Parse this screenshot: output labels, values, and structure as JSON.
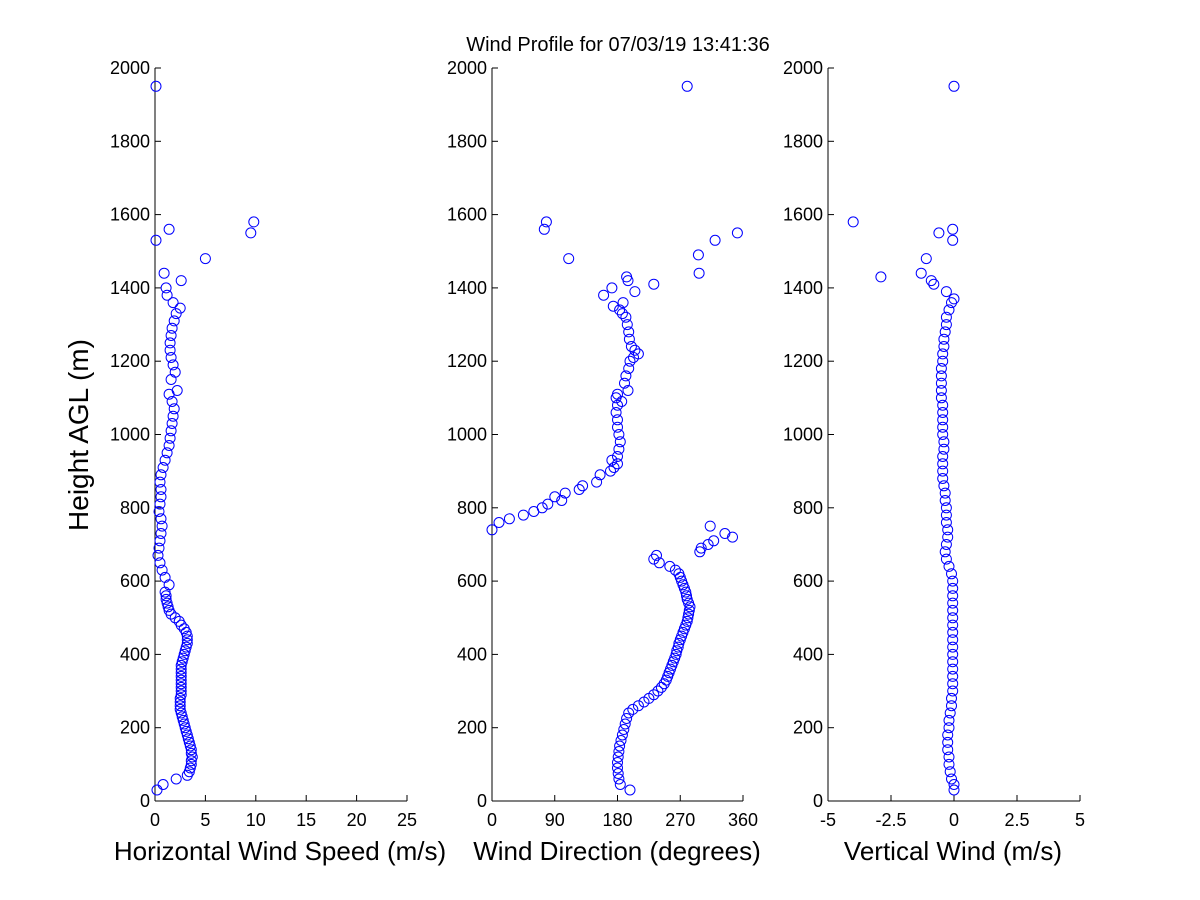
{
  "figure": {
    "title": "Wind Profile for  07/03/19 13:41:36"
  },
  "chart_data": [
    {
      "type": "scatter",
      "id": "speed",
      "title": "",
      "xlabel": "Horizontal Wind Speed (m/s)",
      "ylabel": "Height AGL (m)",
      "xlim": [
        0,
        25
      ],
      "ylim": [
        0,
        2000
      ],
      "xticks": [
        0,
        5,
        10,
        15,
        20,
        25
      ],
      "xtick_labels": [
        "0",
        "5",
        "10",
        "15",
        "20",
        "25"
      ],
      "yticks": [
        0,
        200,
        400,
        600,
        800,
        1000,
        1200,
        1400,
        1600,
        1800,
        2000
      ],
      "ytick_labels": [
        "0",
        "200",
        "400",
        "600",
        "800",
        "1000",
        "1200",
        "1400",
        "1600",
        "1800",
        "2000"
      ],
      "marker": "open-circle",
      "marker_color": "#0000ff",
      "grid": false,
      "points": [
        [
          0.2,
          30
        ],
        [
          0.8,
          45
        ],
        [
          2.1,
          60
        ],
        [
          3.2,
          70
        ],
        [
          3.4,
          80
        ],
        [
          3.5,
          90
        ],
        [
          3.6,
          100
        ],
        [
          3.6,
          110
        ],
        [
          3.7,
          120
        ],
        [
          3.6,
          130
        ],
        [
          3.6,
          140
        ],
        [
          3.5,
          150
        ],
        [
          3.4,
          160
        ],
        [
          3.3,
          170
        ],
        [
          3.2,
          180
        ],
        [
          3.1,
          190
        ],
        [
          3.0,
          200
        ],
        [
          2.9,
          210
        ],
        [
          2.8,
          220
        ],
        [
          2.7,
          230
        ],
        [
          2.6,
          240
        ],
        [
          2.5,
          250
        ],
        [
          2.5,
          260
        ],
        [
          2.5,
          270
        ],
        [
          2.5,
          280
        ],
        [
          2.6,
          290
        ],
        [
          2.6,
          300
        ],
        [
          2.6,
          310
        ],
        [
          2.6,
          320
        ],
        [
          2.6,
          330
        ],
        [
          2.6,
          340
        ],
        [
          2.6,
          350
        ],
        [
          2.6,
          360
        ],
        [
          2.6,
          370
        ],
        [
          2.7,
          380
        ],
        [
          2.8,
          390
        ],
        [
          2.9,
          400
        ],
        [
          3.0,
          410
        ],
        [
          3.1,
          420
        ],
        [
          3.2,
          430
        ],
        [
          3.2,
          440
        ],
        [
          3.2,
          450
        ],
        [
          3.1,
          460
        ],
        [
          2.9,
          470
        ],
        [
          2.6,
          480
        ],
        [
          2.4,
          490
        ],
        [
          2.0,
          500
        ],
        [
          1.6,
          510
        ],
        [
          1.4,
          520
        ],
        [
          1.3,
          530
        ],
        [
          1.2,
          540
        ],
        [
          1.1,
          550
        ],
        [
          1.1,
          560
        ],
        [
          1.0,
          570
        ],
        [
          1.4,
          590
        ],
        [
          1.0,
          610
        ],
        [
          0.7,
          630
        ],
        [
          0.5,
          650
        ],
        [
          0.3,
          670
        ],
        [
          0.4,
          690
        ],
        [
          0.5,
          710
        ],
        [
          0.6,
          730
        ],
        [
          0.7,
          750
        ],
        [
          0.6,
          770
        ],
        [
          0.4,
          790
        ],
        [
          0.5,
          810
        ],
        [
          0.6,
          830
        ],
        [
          0.6,
          850
        ],
        [
          0.5,
          870
        ],
        [
          0.6,
          890
        ],
        [
          0.8,
          910
        ],
        [
          1.0,
          930
        ],
        [
          1.2,
          950
        ],
        [
          1.4,
          970
        ],
        [
          1.5,
          990
        ],
        [
          1.6,
          1010
        ],
        [
          1.7,
          1030
        ],
        [
          1.8,
          1050
        ],
        [
          1.9,
          1070
        ],
        [
          1.7,
          1090
        ],
        [
          1.4,
          1110
        ],
        [
          2.2,
          1120
        ],
        [
          1.6,
          1150
        ],
        [
          2.0,
          1170
        ],
        [
          1.8,
          1190
        ],
        [
          1.6,
          1210
        ],
        [
          1.5,
          1230
        ],
        [
          1.5,
          1250
        ],
        [
          1.6,
          1270
        ],
        [
          1.7,
          1290
        ],
        [
          1.9,
          1310
        ],
        [
          2.1,
          1330
        ],
        [
          2.5,
          1345
        ],
        [
          1.8,
          1360
        ],
        [
          1.2,
          1380
        ],
        [
          1.1,
          1400
        ],
        [
          2.6,
          1420
        ],
        [
          0.9,
          1440
        ],
        [
          5.0,
          1480
        ],
        [
          0.1,
          1530
        ],
        [
          9.5,
          1550
        ],
        [
          1.4,
          1560
        ],
        [
          9.8,
          1580
        ],
        [
          0.1,
          1950
        ]
      ]
    },
    {
      "type": "scatter",
      "id": "direction",
      "title": "",
      "xlabel": "Wind Direction (degrees)",
      "ylabel": "",
      "xlim": [
        0,
        360
      ],
      "ylim": [
        0,
        2000
      ],
      "xticks": [
        0,
        90,
        180,
        270,
        360
      ],
      "xtick_labels": [
        "0",
        "90",
        "180",
        "270",
        "360"
      ],
      "yticks": [
        0,
        200,
        400,
        600,
        800,
        1000,
        1200,
        1400,
        1600,
        1800,
        2000
      ],
      "ytick_labels": [
        "0",
        "200",
        "400",
        "600",
        "800",
        "1000",
        "1200",
        "1400",
        "1600",
        "1800",
        "2000"
      ],
      "marker": "open-circle",
      "marker_color": "#0000ff",
      "grid": false,
      "points": [
        [
          198,
          30
        ],
        [
          184,
          45
        ],
        [
          182,
          60
        ],
        [
          181,
          75
        ],
        [
          180,
          90
        ],
        [
          180,
          105
        ],
        [
          181,
          120
        ],
        [
          182,
          135
        ],
        [
          183,
          150
        ],
        [
          185,
          165
        ],
        [
          187,
          180
        ],
        [
          189,
          195
        ],
        [
          191,
          210
        ],
        [
          193,
          225
        ],
        [
          196,
          240
        ],
        [
          202,
          250
        ],
        [
          210,
          260
        ],
        [
          218,
          270
        ],
        [
          225,
          280
        ],
        [
          232,
          290
        ],
        [
          238,
          300
        ],
        [
          243,
          310
        ],
        [
          247,
          320
        ],
        [
          250,
          330
        ],
        [
          252,
          340
        ],
        [
          254,
          350
        ],
        [
          256,
          360
        ],
        [
          258,
          370
        ],
        [
          260,
          380
        ],
        [
          262,
          390
        ],
        [
          264,
          400
        ],
        [
          265,
          410
        ],
        [
          267,
          420
        ],
        [
          268,
          430
        ],
        [
          270,
          440
        ],
        [
          272,
          450
        ],
        [
          274,
          460
        ],
        [
          276,
          470
        ],
        [
          278,
          480
        ],
        [
          280,
          490
        ],
        [
          281,
          500
        ],
        [
          282,
          510
        ],
        [
          283,
          520
        ],
        [
          284,
          530
        ],
        [
          282,
          540
        ],
        [
          280,
          550
        ],
        [
          279,
          560
        ],
        [
          278,
          570
        ],
        [
          276,
          580
        ],
        [
          274,
          590
        ],
        [
          272,
          600
        ],
        [
          270,
          610
        ],
        [
          268,
          620
        ],
        [
          263,
          630
        ],
        [
          255,
          640
        ],
        [
          240,
          650
        ],
        [
          232,
          660
        ],
        [
          236,
          670
        ],
        [
          298,
          680
        ],
        [
          300,
          690
        ],
        [
          310,
          700
        ],
        [
          318,
          710
        ],
        [
          345,
          720
        ],
        [
          334,
          730
        ],
        [
          313,
          750
        ],
        [
          0,
          740
        ],
        [
          10,
          760
        ],
        [
          25,
          770
        ],
        [
          45,
          780
        ],
        [
          60,
          790
        ],
        [
          72,
          800
        ],
        [
          80,
          810
        ],
        [
          100,
          820
        ],
        [
          90,
          830
        ],
        [
          105,
          840
        ],
        [
          125,
          850
        ],
        [
          130,
          860
        ],
        [
          150,
          870
        ],
        [
          155,
          890
        ],
        [
          170,
          900
        ],
        [
          175,
          910
        ],
        [
          180,
          920
        ],
        [
          172,
          930
        ],
        [
          180,
          940
        ],
        [
          182,
          960
        ],
        [
          184,
          980
        ],
        [
          182,
          1000
        ],
        [
          180,
          1020
        ],
        [
          180,
          1040
        ],
        [
          178,
          1060
        ],
        [
          180,
          1080
        ],
        [
          186,
          1090
        ],
        [
          178,
          1100
        ],
        [
          180,
          1110
        ],
        [
          195,
          1120
        ],
        [
          190,
          1140
        ],
        [
          192,
          1160
        ],
        [
          196,
          1180
        ],
        [
          198,
          1200
        ],
        [
          203,
          1210
        ],
        [
          210,
          1220
        ],
        [
          205,
          1230
        ],
        [
          200,
          1240
        ],
        [
          197,
          1260
        ],
        [
          196,
          1280
        ],
        [
          194,
          1300
        ],
        [
          192,
          1320
        ],
        [
          187,
          1330
        ],
        [
          183,
          1340
        ],
        [
          174,
          1350
        ],
        [
          188,
          1360
        ],
        [
          160,
          1380
        ],
        [
          205,
          1390
        ],
        [
          172,
          1400
        ],
        [
          232,
          1410
        ],
        [
          195,
          1420
        ],
        [
          193,
          1430
        ],
        [
          297,
          1440
        ],
        [
          110,
          1480
        ],
        [
          296,
          1490
        ],
        [
          320,
          1530
        ],
        [
          352,
          1550
        ],
        [
          75,
          1560
        ],
        [
          78,
          1580
        ],
        [
          280,
          1950
        ]
      ]
    },
    {
      "type": "scatter",
      "id": "vertical",
      "title": "",
      "xlabel": "Vertical Wind (m/s)",
      "ylabel": "",
      "xlim": [
        -5,
        5
      ],
      "ylim": [
        0,
        2000
      ],
      "xticks": [
        -5,
        -2.5,
        0,
        2.5,
        5
      ],
      "xtick_labels": [
        "-5",
        "-2.5",
        "0",
        "2.5",
        "5"
      ],
      "yticks": [
        0,
        200,
        400,
        600,
        800,
        1000,
        1200,
        1400,
        1600,
        1800,
        2000
      ],
      "ytick_labels": [
        "0",
        "200",
        "400",
        "600",
        "800",
        "1000",
        "1200",
        "1400",
        "1600",
        "1800",
        "2000"
      ],
      "marker": "open-circle",
      "marker_color": "#0000ff",
      "grid": false,
      "points": [
        [
          0.0,
          30
        ],
        [
          0.0,
          45
        ],
        [
          -0.1,
          60
        ],
        [
          -0.15,
          80
        ],
        [
          -0.2,
          100
        ],
        [
          -0.2,
          120
        ],
        [
          -0.25,
          140
        ],
        [
          -0.25,
          160
        ],
        [
          -0.25,
          180
        ],
        [
          -0.2,
          200
        ],
        [
          -0.2,
          220
        ],
        [
          -0.15,
          240
        ],
        [
          -0.1,
          260
        ],
        [
          -0.1,
          280
        ],
        [
          -0.05,
          300
        ],
        [
          -0.05,
          320
        ],
        [
          -0.05,
          340
        ],
        [
          -0.05,
          360
        ],
        [
          -0.05,
          380
        ],
        [
          -0.05,
          400
        ],
        [
          -0.05,
          420
        ],
        [
          -0.05,
          440
        ],
        [
          -0.05,
          460
        ],
        [
          -0.05,
          480
        ],
        [
          -0.05,
          500
        ],
        [
          -0.05,
          520
        ],
        [
          -0.05,
          540
        ],
        [
          -0.05,
          560
        ],
        [
          -0.05,
          580
        ],
        [
          -0.05,
          600
        ],
        [
          -0.1,
          620
        ],
        [
          -0.2,
          640
        ],
        [
          -0.3,
          660
        ],
        [
          -0.35,
          680
        ],
        [
          -0.3,
          700
        ],
        [
          -0.25,
          720
        ],
        [
          -0.25,
          740
        ],
        [
          -0.3,
          760
        ],
        [
          -0.3,
          780
        ],
        [
          -0.3,
          800
        ],
        [
          -0.35,
          820
        ],
        [
          -0.35,
          840
        ],
        [
          -0.4,
          860
        ],
        [
          -0.45,
          880
        ],
        [
          -0.45,
          900
        ],
        [
          -0.45,
          920
        ],
        [
          -0.45,
          940
        ],
        [
          -0.4,
          960
        ],
        [
          -0.4,
          980
        ],
        [
          -0.45,
          1000
        ],
        [
          -0.45,
          1020
        ],
        [
          -0.45,
          1040
        ],
        [
          -0.45,
          1060
        ],
        [
          -0.45,
          1080
        ],
        [
          -0.5,
          1100
        ],
        [
          -0.5,
          1120
        ],
        [
          -0.5,
          1140
        ],
        [
          -0.5,
          1160
        ],
        [
          -0.5,
          1180
        ],
        [
          -0.45,
          1200
        ],
        [
          -0.45,
          1220
        ],
        [
          -0.4,
          1240
        ],
        [
          -0.4,
          1260
        ],
        [
          -0.35,
          1280
        ],
        [
          -0.3,
          1300
        ],
        [
          -0.3,
          1320
        ],
        [
          -0.2,
          1340
        ],
        [
          -0.1,
          1360
        ],
        [
          0.0,
          1370
        ],
        [
          -0.3,
          1390
        ],
        [
          -0.8,
          1410
        ],
        [
          -1.3,
          1440
        ],
        [
          -0.9,
          1420
        ],
        [
          -2.9,
          1430
        ],
        [
          -1.1,
          1480
        ],
        [
          -0.6,
          1550
        ],
        [
          -0.05,
          1530
        ],
        [
          -0.05,
          1560
        ],
        [
          -4.0,
          1580
        ],
        [
          0.0,
          1950
        ]
      ]
    }
  ]
}
